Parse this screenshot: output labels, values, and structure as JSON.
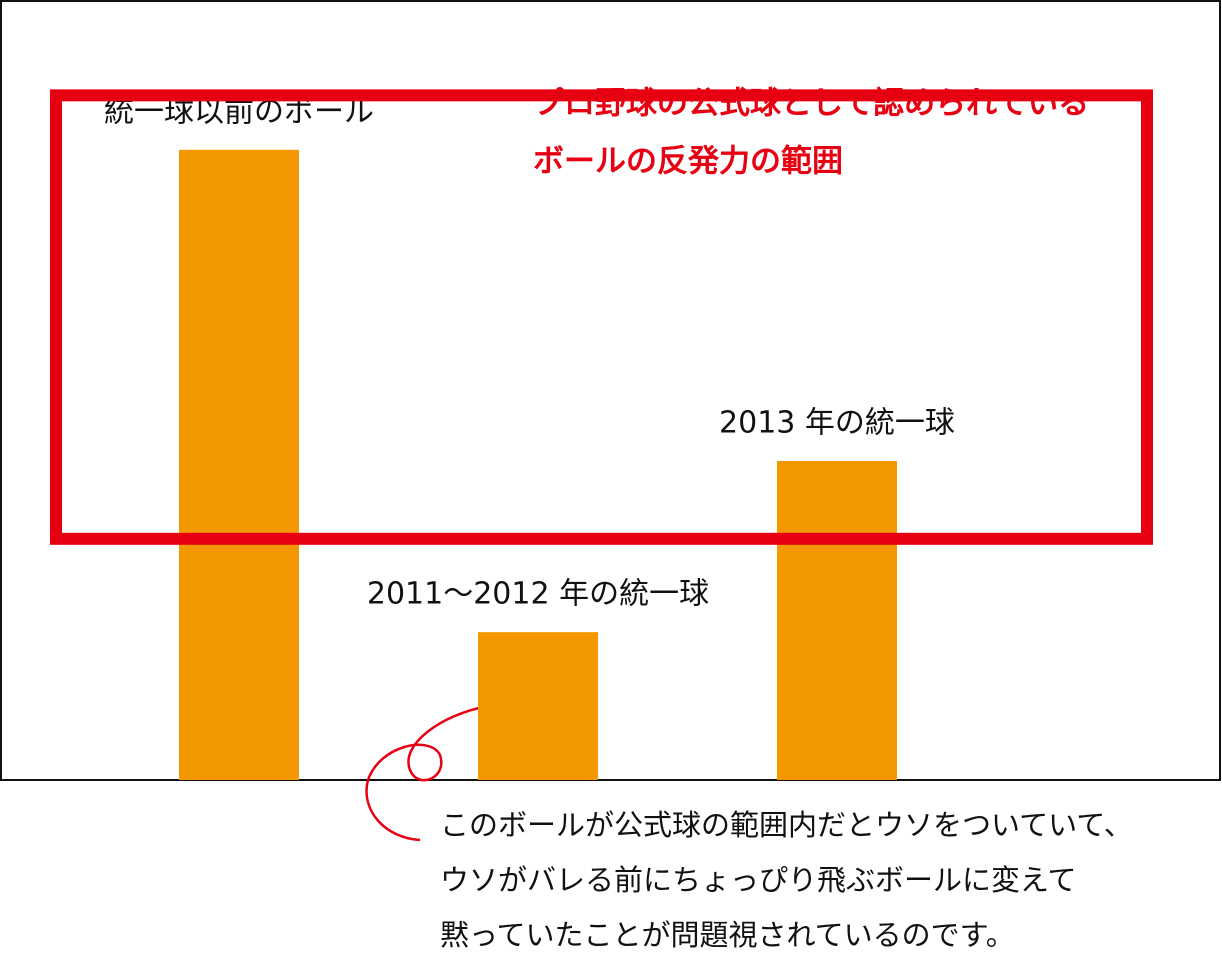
{
  "chart_data": {
    "type": "bar",
    "categories": [
      "統一球以前のボール",
      "2011〜2012 年の統一球",
      "2013 年の統一球"
    ],
    "values": [
      81,
      19,
      41
    ],
    "color": "#f39800",
    "ylim": [
      0,
      100
    ],
    "range": {
      "label": [
        "プロ野球の公式球として認められている",
        "ボールの反発力の範囲"
      ],
      "values": [
        31,
        88
      ],
      "color": "#e60012"
    },
    "note": [
      "このボールが公式球の範囲内だとウソをついていて、",
      "ウソがバレる前にちょっぴり飛ぶボールに変えて",
      "黙っていたことが問題視されているのです。"
    ]
  }
}
